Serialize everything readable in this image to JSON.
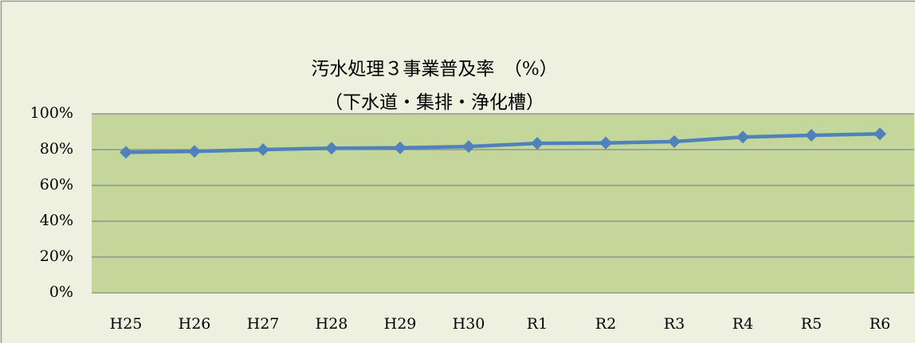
{
  "chart_data": {
    "type": "line",
    "title": "汚水処理３事業普及率　（%）",
    "subtitle": "（下水道・集排・浄化槽）",
    "categories": [
      "H25",
      "H26",
      "H27",
      "H28",
      "H29",
      "H30",
      "R1",
      "R2",
      "R3",
      "R4",
      "R5",
      "R6"
    ],
    "series": [
      {
        "name": "汚水処理３事業普及率",
        "color": "#4f81bd",
        "values": [
          78.5,
          79,
          80,
          80.8,
          81,
          81.7,
          83.5,
          83.7,
          84.5,
          87,
          88,
          88.8
        ]
      }
    ],
    "ylim": [
      0,
      100
    ],
    "yticks": [
      {
        "value": 0,
        "label": "0%"
      },
      {
        "value": 20,
        "label": "20%"
      },
      {
        "value": 40,
        "label": "40%"
      },
      {
        "value": 60,
        "label": "60%"
      },
      {
        "value": 80,
        "label": "80%"
      },
      {
        "value": 100,
        "label": "100%"
      }
    ],
    "grid": true
  }
}
